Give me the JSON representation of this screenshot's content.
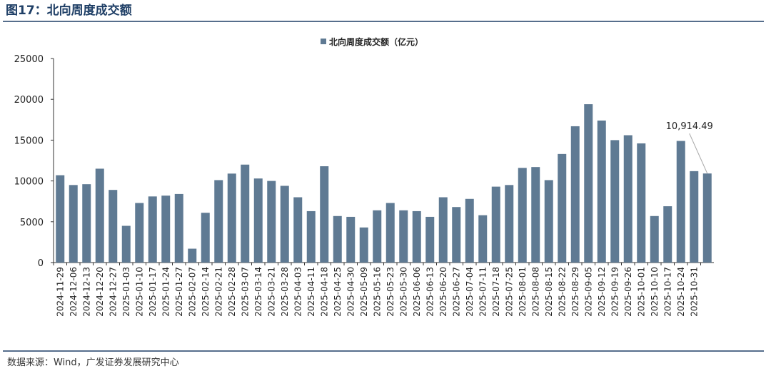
{
  "figure_title": "图17：北向周度成交额",
  "source": "数据来源：Wind，广发证券发展研究中心",
  "chart_data": {
    "type": "bar",
    "categories": [
      "2024-11-29",
      "2024-12-06",
      "2024-12-13",
      "2024-12-20",
      "2024-12-27",
      "2025-01-03",
      "2025-01-10",
      "2025-01-17",
      "2025-01-24",
      "2025-01-27",
      "2025-02-07",
      "2025-02-14",
      "2025-02-21",
      "2025-02-28",
      "2025-03-07",
      "2025-03-14",
      "2025-03-21",
      "2025-03-28",
      "2025-04-03",
      "2025-04-11",
      "2025-04-18",
      "2025-04-25",
      "2025-04-30",
      "2025-05-09",
      "2025-05-16",
      "2025-05-23",
      "2025-05-30",
      "2025-06-06",
      "2025-06-13",
      "2025-06-20",
      "2025-06-27",
      "2025-07-04",
      "2025-07-11",
      "2025-07-18",
      "2025-07-25",
      "2025-08-01",
      "2025-08-08",
      "2025-08-15",
      "2025-08-22",
      "2025-08-29",
      "2025-09-05",
      "2025-09-12",
      "2025-09-19",
      "2025-09-26",
      "2025-10-01",
      "2025-10-10",
      "2025-10-17",
      "2025-10-24",
      "2025-10-31",
      null
    ],
    "series": [
      {
        "name": "北向周度成交额（亿元）",
        "color": "#5f7a93",
        "values": [
          10700,
          9500,
          9600,
          11500,
          8900,
          4500,
          7300,
          8100,
          8200,
          8400,
          1700,
          6100,
          10100,
          10900,
          12000,
          10300,
          10000,
          9400,
          8000,
          6300,
          11800,
          5700,
          5600,
          4300,
          6400,
          7300,
          6400,
          6300,
          5600,
          8000,
          6800,
          7800,
          5800,
          9300,
          9500,
          11600,
          11700,
          10100,
          13300,
          16700,
          19400,
          17400,
          15000,
          15600,
          14600,
          5700,
          6900,
          14900,
          11200,
          10914.49
        ],
        "value_labels": [
          null,
          null,
          null,
          null,
          null,
          null,
          null,
          null,
          null,
          null,
          null,
          null,
          null,
          null,
          null,
          null,
          null,
          null,
          null,
          null,
          null,
          null,
          null,
          null,
          null,
          null,
          null,
          null,
          null,
          null,
          null,
          null,
          null,
          null,
          null,
          null,
          null,
          null,
          null,
          null,
          null,
          null,
          null,
          null,
          null,
          null,
          null,
          null,
          null,
          "10,914.49"
        ]
      }
    ],
    "ylim": [
      0,
      25000
    ],
    "yticks": [
      0,
      5000,
      10000,
      15000,
      20000,
      25000
    ],
    "grid": false
  }
}
